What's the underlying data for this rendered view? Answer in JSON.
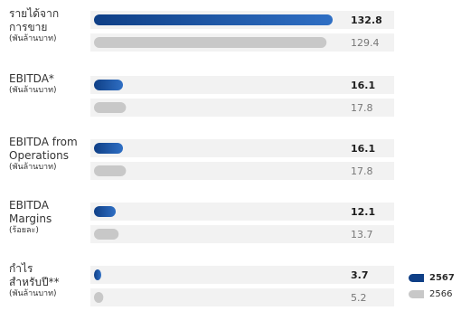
{
  "colors": {
    "series_2567": "#0f3f86",
    "series_2567_light": "#2f6fc4",
    "series_2566": "#c8c8c8",
    "track": "#f2f2f2"
  },
  "chart_data": {
    "type": "bar",
    "orientation": "horizontal",
    "grid": false,
    "legend_position": "bottom-right",
    "series": [
      {
        "name": "2567",
        "values": [
          132.8,
          16.1,
          16.1,
          12.1,
          3.7
        ],
        "value_labels": [
          "132.8",
          "16.1",
          "16.1",
          "12.1",
          "3.7"
        ]
      },
      {
        "name": "2566",
        "values": [
          129.4,
          17.8,
          17.8,
          13.7,
          5.2
        ],
        "value_labels": [
          "129.4",
          "17.8",
          "17.8",
          "13.7",
          "5.2"
        ]
      }
    ],
    "categories": [
      {
        "lines": [
          "รายได้จาก",
          "การขาย"
        ],
        "unit": "(พันล้านบาท)"
      },
      {
        "lines": [
          "EBITDA*"
        ],
        "unit": "(พันล้านบาท)"
      },
      {
        "lines": [
          "EBITDA from",
          "Operations"
        ],
        "unit": "(พันล้านบาท)"
      },
      {
        "lines": [
          "EBITDA",
          "Margins"
        ],
        "unit": "(ร้อยละ)"
      },
      {
        "lines": [
          "กำไร",
          "สำหรับปี**"
        ],
        "unit": "(พันล้านบาท)"
      }
    ]
  }
}
